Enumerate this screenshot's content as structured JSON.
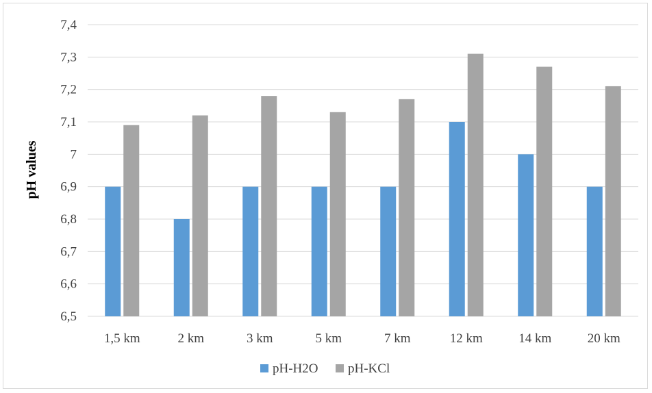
{
  "chart_data": {
    "type": "bar",
    "title": "",
    "xlabel": "",
    "ylabel": "pH values",
    "categories": [
      "1,5 km",
      "2 km",
      "3 km",
      "5 km",
      "7 km",
      "12 km",
      "14 km",
      "20 km"
    ],
    "series": [
      {
        "name": "pH-H2O",
        "color": "#5b9bd5",
        "values": [
          6.9,
          6.8,
          6.9,
          6.9,
          6.9,
          7.1,
          7.0,
          6.9
        ]
      },
      {
        "name": "pH-KCl",
        "color": "#a5a5a5",
        "values": [
          7.09,
          7.12,
          7.18,
          7.13,
          7.17,
          7.31,
          7.27,
          7.21
        ]
      }
    ],
    "ylim": [
      6.5,
      7.4
    ],
    "yticks": [
      6.5,
      6.6,
      6.7,
      6.8,
      6.9,
      7.0,
      7.1,
      7.2,
      7.3,
      7.4
    ],
    "ytick_labels": [
      "6,5",
      "6,6",
      "6,7",
      "6,8",
      "6,9",
      "7",
      "7,1",
      "7,2",
      "7,3",
      "7,4"
    ],
    "grid": true,
    "legend_position": "bottom"
  }
}
